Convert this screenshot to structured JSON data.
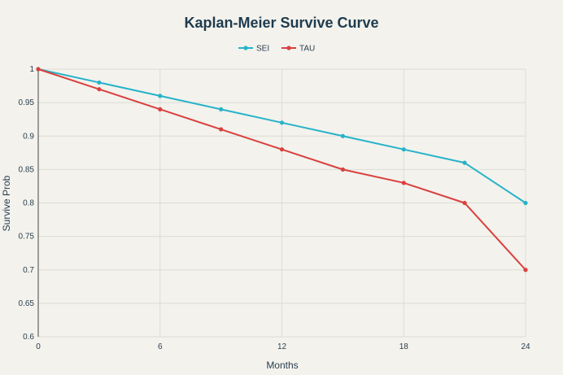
{
  "chart_data": {
    "type": "line",
    "title": "Kaplan-Meier Survive Curve",
    "xlabel": "Months",
    "ylabel": "Survive Prob",
    "xlim": [
      0,
      24
    ],
    "ylim": [
      0.6,
      1
    ],
    "x_ticks": [
      0,
      6,
      12,
      18,
      24
    ],
    "y_ticks": [
      0.6,
      0.65,
      0.7,
      0.75,
      0.8,
      0.85,
      0.9,
      0.95,
      1
    ],
    "y_tick_labels": [
      "0.6",
      "0.65",
      "0.7",
      "0.75",
      "0.8",
      "0.85",
      "0.9",
      "0.95",
      "1"
    ],
    "grid": true,
    "legend_position": "top-center",
    "series": [
      {
        "name": "SEI",
        "color": "#26b3c9",
        "x": [
          0,
          3,
          6,
          9,
          12,
          15,
          18,
          21,
          24
        ],
        "y": [
          1.0,
          0.98,
          0.96,
          0.94,
          0.92,
          0.9,
          0.88,
          0.86,
          0.8
        ]
      },
      {
        "name": "TAU",
        "color": "#d9413e",
        "x": [
          0,
          3,
          6,
          9,
          12,
          15,
          18,
          21,
          24
        ],
        "y": [
          1.0,
          0.97,
          0.94,
          0.91,
          0.88,
          0.85,
          0.83,
          0.8,
          0.7
        ]
      }
    ]
  }
}
